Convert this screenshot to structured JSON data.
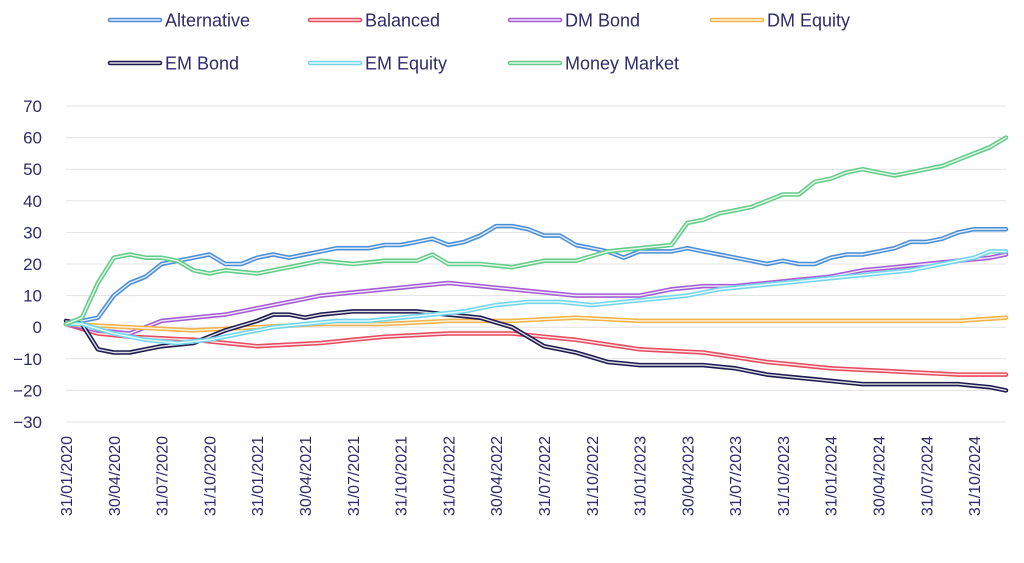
{
  "chart_data": {
    "type": "line",
    "title": "",
    "xlabel": "",
    "ylabel": "",
    "ylim": [
      -30,
      70
    ],
    "yticks": [
      -30,
      -20,
      -10,
      0,
      10,
      20,
      30,
      40,
      50,
      60,
      70
    ],
    "grid": true,
    "legend_position": "top",
    "x_start": "2020-01-31",
    "n_points": 60,
    "tick_labels": [
      "31/01/2020",
      "30/04/2020",
      "31/07/2020",
      "31/10/2020",
      "31/01/2021",
      "30/04/2021",
      "31/07/2021",
      "31/10/2021",
      "31/01/2022",
      "30/04/2022",
      "31/07/2022",
      "31/10/2022",
      "31/01/2023",
      "30/04/2023",
      "31/07/2023",
      "31/10/2023",
      "31/01/2024",
      "30/04/2024",
      "31/07/2024",
      "31/10/2024"
    ],
    "series": [
      {
        "name": "Alternative",
        "color": "#4a8fd6",
        "anchors": [
          [
            0,
            1
          ],
          [
            1,
            2
          ],
          [
            2,
            3
          ],
          [
            3,
            10
          ],
          [
            4,
            14
          ],
          [
            5,
            16
          ],
          [
            6,
            20
          ],
          [
            7,
            21
          ],
          [
            8,
            22
          ],
          [
            9,
            23
          ],
          [
            10,
            20
          ],
          [
            11,
            20
          ],
          [
            12,
            22
          ],
          [
            13,
            23
          ],
          [
            14,
            22
          ],
          [
            15,
            23
          ],
          [
            16,
            24
          ],
          [
            17,
            25
          ],
          [
            18,
            25
          ],
          [
            19,
            25
          ],
          [
            20,
            26
          ],
          [
            21,
            26
          ],
          [
            22,
            27
          ],
          [
            23,
            28
          ],
          [
            24,
            26
          ],
          [
            25,
            27
          ],
          [
            26,
            29
          ],
          [
            27,
            32
          ],
          [
            28,
            32
          ],
          [
            29,
            31
          ],
          [
            30,
            29
          ],
          [
            31,
            29
          ],
          [
            32,
            26
          ],
          [
            33,
            25
          ],
          [
            34,
            24
          ],
          [
            35,
            22
          ],
          [
            36,
            24
          ],
          [
            37,
            24
          ],
          [
            38,
            24
          ],
          [
            39,
            25
          ],
          [
            40,
            24
          ],
          [
            41,
            23
          ],
          [
            42,
            22
          ],
          [
            43,
            21
          ],
          [
            44,
            20
          ],
          [
            45,
            21
          ],
          [
            46,
            20
          ],
          [
            47,
            20
          ],
          [
            48,
            22
          ],
          [
            49,
            23
          ],
          [
            50,
            23
          ],
          [
            51,
            24
          ],
          [
            52,
            25
          ],
          [
            53,
            27
          ],
          [
            54,
            27
          ],
          [
            55,
            28
          ],
          [
            56,
            30
          ],
          [
            57,
            31
          ],
          [
            58,
            31
          ],
          [
            59,
            31
          ]
        ]
      },
      {
        "name": "Balanced",
        "color": "#e84a5f",
        "anchors": [
          [
            0,
            1
          ],
          [
            2,
            -2
          ],
          [
            4,
            -3
          ],
          [
            8,
            -4
          ],
          [
            12,
            -6
          ],
          [
            16,
            -5
          ],
          [
            20,
            -3
          ],
          [
            24,
            -2
          ],
          [
            28,
            -2
          ],
          [
            32,
            -4
          ],
          [
            36,
            -7
          ],
          [
            40,
            -8
          ],
          [
            44,
            -11
          ],
          [
            48,
            -13
          ],
          [
            52,
            -14
          ],
          [
            56,
            -15
          ],
          [
            59,
            -15
          ]
        ]
      },
      {
        "name": "DM Bond",
        "color": "#a35dd4",
        "anchors": [
          [
            0,
            1
          ],
          [
            2,
            -1
          ],
          [
            4,
            -2
          ],
          [
            6,
            2
          ],
          [
            8,
            3
          ],
          [
            10,
            4
          ],
          [
            12,
            6
          ],
          [
            14,
            8
          ],
          [
            16,
            10
          ],
          [
            18,
            11
          ],
          [
            20,
            12
          ],
          [
            22,
            13
          ],
          [
            24,
            14
          ],
          [
            26,
            13
          ],
          [
            28,
            12
          ],
          [
            30,
            11
          ],
          [
            32,
            10
          ],
          [
            34,
            10
          ],
          [
            36,
            10
          ],
          [
            38,
            12
          ],
          [
            40,
            13
          ],
          [
            42,
            13
          ],
          [
            44,
            14
          ],
          [
            46,
            15
          ],
          [
            48,
            16
          ],
          [
            50,
            18
          ],
          [
            52,
            19
          ],
          [
            54,
            20
          ],
          [
            56,
            21
          ],
          [
            58,
            22
          ],
          [
            59,
            23
          ]
        ]
      },
      {
        "name": "DM Equity",
        "color": "#f2b34a",
        "anchors": [
          [
            0,
            1
          ],
          [
            4,
            0
          ],
          [
            8,
            -1
          ],
          [
            12,
            0
          ],
          [
            16,
            1
          ],
          [
            20,
            1
          ],
          [
            24,
            2
          ],
          [
            28,
            2
          ],
          [
            32,
            3
          ],
          [
            36,
            2
          ],
          [
            40,
            2
          ],
          [
            44,
            2
          ],
          [
            48,
            2
          ],
          [
            52,
            2
          ],
          [
            56,
            2
          ],
          [
            59,
            3
          ]
        ]
      },
      {
        "name": "EM Bond",
        "color": "#1e1a4e",
        "anchors": [
          [
            0,
            2
          ],
          [
            1,
            1
          ],
          [
            2,
            -7
          ],
          [
            3,
            -8
          ],
          [
            4,
            -8
          ],
          [
            5,
            -7
          ],
          [
            6,
            -6
          ],
          [
            8,
            -5
          ],
          [
            10,
            -1
          ],
          [
            12,
            2
          ],
          [
            13,
            4
          ],
          [
            14,
            4
          ],
          [
            15,
            3
          ],
          [
            16,
            4
          ],
          [
            18,
            5
          ],
          [
            20,
            5
          ],
          [
            22,
            5
          ],
          [
            24,
            4
          ],
          [
            26,
            3
          ],
          [
            28,
            0
          ],
          [
            30,
            -6
          ],
          [
            32,
            -8
          ],
          [
            34,
            -11
          ],
          [
            36,
            -12
          ],
          [
            38,
            -12
          ],
          [
            40,
            -12
          ],
          [
            42,
            -13
          ],
          [
            44,
            -15
          ],
          [
            46,
            -16
          ],
          [
            48,
            -17
          ],
          [
            50,
            -18
          ],
          [
            52,
            -18
          ],
          [
            54,
            -18
          ],
          [
            56,
            -18
          ],
          [
            58,
            -19
          ],
          [
            59,
            -20
          ]
        ]
      },
      {
        "name": "EM Equity",
        "color": "#72d6ea",
        "anchors": [
          [
            0,
            1
          ],
          [
            1,
            1
          ],
          [
            3,
            -2
          ],
          [
            5,
            -4
          ],
          [
            7,
            -5
          ],
          [
            9,
            -4
          ],
          [
            11,
            -2
          ],
          [
            13,
            0
          ],
          [
            15,
            1
          ],
          [
            17,
            2
          ],
          [
            19,
            2
          ],
          [
            21,
            3
          ],
          [
            23,
            4
          ],
          [
            25,
            5
          ],
          [
            27,
            7
          ],
          [
            29,
            8
          ],
          [
            31,
            8
          ],
          [
            33,
            7
          ],
          [
            35,
            8
          ],
          [
            37,
            9
          ],
          [
            39,
            10
          ],
          [
            41,
            12
          ],
          [
            43,
            13
          ],
          [
            45,
            14
          ],
          [
            47,
            15
          ],
          [
            49,
            16
          ],
          [
            51,
            17
          ],
          [
            53,
            18
          ],
          [
            55,
            20
          ],
          [
            57,
            22
          ],
          [
            58,
            24
          ],
          [
            59,
            24
          ]
        ]
      },
      {
        "name": "Money Market",
        "color": "#62cc88",
        "anchors": [
          [
            0,
            1
          ],
          [
            1,
            3
          ],
          [
            2,
            14
          ],
          [
            3,
            22
          ],
          [
            4,
            23
          ],
          [
            5,
            22
          ],
          [
            6,
            22
          ],
          [
            7,
            21
          ],
          [
            8,
            18
          ],
          [
            9,
            17
          ],
          [
            10,
            18
          ],
          [
            12,
            17
          ],
          [
            14,
            19
          ],
          [
            16,
            21
          ],
          [
            18,
            20
          ],
          [
            20,
            21
          ],
          [
            22,
            21
          ],
          [
            23,
            23
          ],
          [
            24,
            20
          ],
          [
            26,
            20
          ],
          [
            28,
            19
          ],
          [
            30,
            21
          ],
          [
            32,
            21
          ],
          [
            34,
            24
          ],
          [
            36,
            25
          ],
          [
            38,
            26
          ],
          [
            39,
            33
          ],
          [
            40,
            34
          ],
          [
            41,
            36
          ],
          [
            42,
            37
          ],
          [
            43,
            38
          ],
          [
            44,
            40
          ],
          [
            45,
            42
          ],
          [
            46,
            42
          ],
          [
            47,
            46
          ],
          [
            48,
            47
          ],
          [
            49,
            49
          ],
          [
            50,
            50
          ],
          [
            51,
            49
          ],
          [
            52,
            48
          ],
          [
            53,
            49
          ],
          [
            54,
            50
          ],
          [
            55,
            51
          ],
          [
            56,
            53
          ],
          [
            57,
            55
          ],
          [
            58,
            57
          ],
          [
            59,
            60
          ]
        ]
      }
    ]
  }
}
